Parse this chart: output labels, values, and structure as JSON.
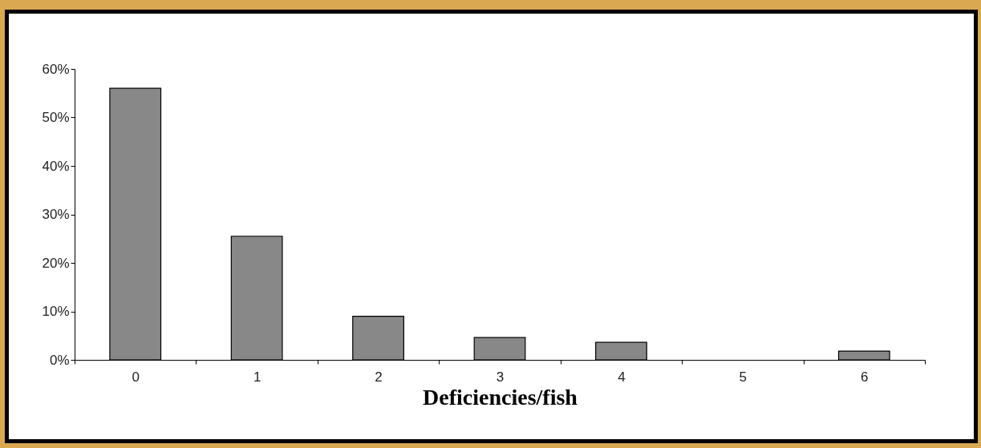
{
  "chart_data": {
    "type": "bar",
    "xlabel": "Deficiencies/fish",
    "categories": [
      "0",
      "1",
      "2",
      "3",
      "4",
      "5",
      "6"
    ],
    "values": [
      56,
      25.5,
      9,
      4.6,
      3.6,
      0,
      1.8
    ],
    "color": "#888888",
    "ylim": [
      0,
      60
    ],
    "yticks": [
      {
        "value": 0,
        "label": "0%"
      },
      {
        "value": 10,
        "label": "10%"
      },
      {
        "value": 20,
        "label": "20%"
      },
      {
        "value": 30,
        "label": "30%"
      },
      {
        "value": 40,
        "label": "40%"
      },
      {
        "value": 50,
        "label": "50%"
      },
      {
        "value": 60,
        "label": "60%"
      }
    ],
    "grid": false
  }
}
